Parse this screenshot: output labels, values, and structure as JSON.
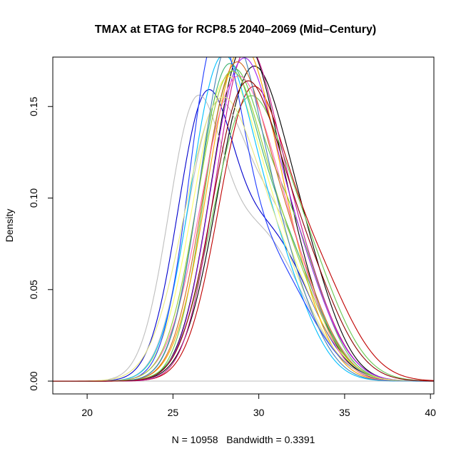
{
  "chart_data": {
    "type": "line",
    "title": "TMAX at ETAG for RCP8.5 2040–2069 (Mid–Century)",
    "xlabel": "N = 10958   Bandwidth = 0.3391",
    "ylabel": "Density",
    "xlim": [
      18,
      40.2
    ],
    "ylim": [
      -0.007,
      0.177
    ],
    "x_ticks": [
      20,
      25,
      30,
      35,
      40
    ],
    "x_tick_labels": [
      "20",
      "25",
      "30",
      "35",
      "40"
    ],
    "y_ticks": [
      0.0,
      0.05,
      0.1,
      0.15
    ],
    "y_tick_labels": [
      "0.00",
      "0.05",
      "0.10",
      "0.15"
    ],
    "zero_line": true,
    "grid": false,
    "legend": "none",
    "series_shape": "mixture of two gaussian kernels per series: density(x) = w1*N(x; mu1, sd1) + (1-w1)*N(x; mu2, sd2)",
    "series": [
      {
        "color": "#0000cd",
        "w1": 0.55,
        "mu1": 26.8,
        "sd1": 1.6,
        "mu2": 30.6,
        "sd2": 2.3
      },
      {
        "color": "#000000",
        "w1": 0.65,
        "mu1": 28.8,
        "sd1": 1.75,
        "mu2": 31.3,
        "sd2": 2.0
      },
      {
        "color": "#000000",
        "w1": 0.75,
        "mu1": 29.4,
        "sd1": 1.9,
        "mu2": 32.5,
        "sd2": 1.8
      },
      {
        "color": "#bebebe",
        "w1": 0.5,
        "mu1": 26.2,
        "sd1": 1.55,
        "mu2": 30.0,
        "sd2": 2.5
      },
      {
        "color": "#bebebe",
        "w1": 0.45,
        "mu1": 27.2,
        "sd1": 1.6,
        "mu2": 30.5,
        "sd2": 2.4
      },
      {
        "color": "#66c850",
        "w1": 0.55,
        "mu1": 28.2,
        "sd1": 1.55,
        "mu2": 31.4,
        "sd2": 2.0
      },
      {
        "color": "#66c850",
        "w1": 0.6,
        "mu1": 29.0,
        "sd1": 1.9,
        "mu2": 32.2,
        "sd2": 2.2
      },
      {
        "color": "#c00000",
        "w1": 0.6,
        "mu1": 29.3,
        "sd1": 1.8,
        "mu2": 32.6,
        "sd2": 2.3
      },
      {
        "color": "#c8148c",
        "w1": 0.65,
        "mu1": 29.0,
        "sd1": 1.7,
        "mu2": 31.8,
        "sd2": 2.0
      },
      {
        "color": "#a020f0",
        "w1": 0.6,
        "mu1": 28.7,
        "sd1": 1.7,
        "mu2": 31.5,
        "sd2": 2.1
      },
      {
        "color": "#ffff66",
        "w1": 0.6,
        "mu1": 27.8,
        "sd1": 1.8,
        "mu2": 30.8,
        "sd2": 2.3
      },
      {
        "color": "#ffa500",
        "w1": 0.65,
        "mu1": 28.6,
        "sd1": 1.8,
        "mu2": 31.0,
        "sd2": 2.0
      },
      {
        "color": "#00bfff",
        "w1": 0.65,
        "mu1": 27.6,
        "sd1": 1.7,
        "mu2": 30.6,
        "sd2": 2.0
      },
      {
        "color": "#3cb371",
        "w1": 0.55,
        "mu1": 27.9,
        "sd1": 1.6,
        "mu2": 30.9,
        "sd2": 2.2
      },
      {
        "color": "#1e3cff",
        "w1": 0.6,
        "mu1": 27.4,
        "sd1": 1.5,
        "mu2": 30.4,
        "sd2": 2.4
      },
      {
        "color": "#d2691e",
        "w1": 0.6,
        "mu1": 28.3,
        "sd1": 1.7,
        "mu2": 31.2,
        "sd2": 2.1
      },
      {
        "color": "#ff69b4",
        "w1": 0.7,
        "mu1": 28.4,
        "sd1": 1.9,
        "mu2": 31.5,
        "sd2": 1.9
      },
      {
        "color": "#9acd32",
        "w1": 0.6,
        "mu1": 28.0,
        "sd1": 1.75,
        "mu2": 31.0,
        "sd2": 2.2
      },
      {
        "color": "#e8e880",
        "w1": 0.55,
        "mu1": 27.3,
        "sd1": 1.9,
        "mu2": 30.3,
        "sd2": 2.4
      },
      {
        "color": "#4682b4",
        "w1": 0.65,
        "mu1": 28.1,
        "sd1": 1.65,
        "mu2": 30.8,
        "sd2": 2.0
      },
      {
        "color": "#8b0000",
        "w1": 0.6,
        "mu1": 28.9,
        "sd1": 1.8,
        "mu2": 32.0,
        "sd2": 2.2
      }
    ]
  }
}
